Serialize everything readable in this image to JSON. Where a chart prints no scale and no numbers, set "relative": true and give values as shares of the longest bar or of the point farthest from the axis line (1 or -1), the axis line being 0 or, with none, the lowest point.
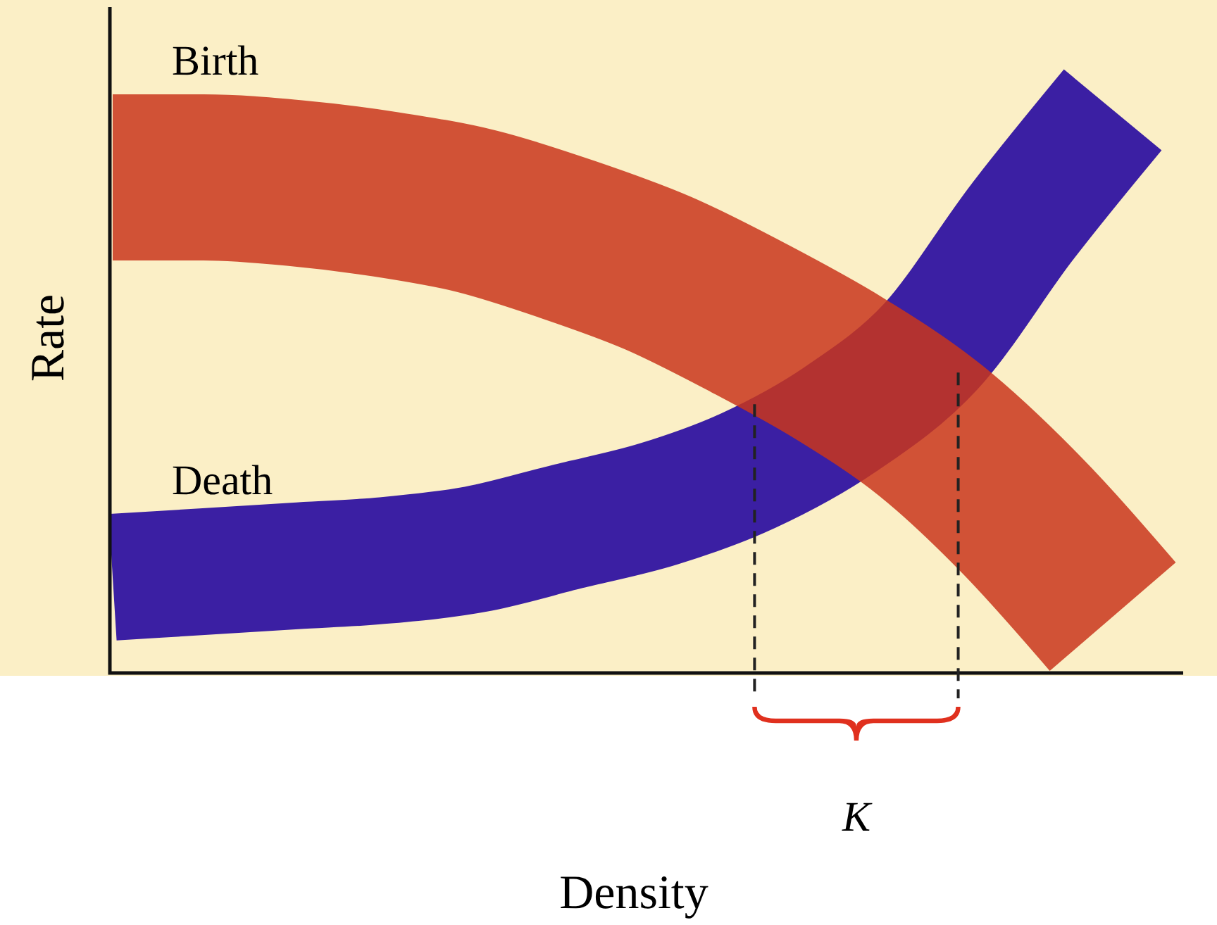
{
  "chart_data": {
    "type": "line",
    "relative": true,
    "xlabel": "Density",
    "ylabel": "Rate",
    "categories": [
      null,
      null,
      null,
      null,
      null,
      null,
      null,
      null,
      null,
      null,
      null,
      null
    ],
    "series": [
      {
        "name": "Birth",
        "color": "#c9361c",
        "values": [
          0.88,
          0.88,
          0.87,
          0.85,
          0.82,
          0.77,
          0.71,
          0.63,
          0.54,
          0.43,
          0.28,
          0.1
        ]
      },
      {
        "name": "Death",
        "color": "#3b1fa3",
        "values": [
          0.17,
          0.18,
          0.19,
          0.2,
          0.22,
          0.26,
          0.3,
          0.36,
          0.45,
          0.58,
          0.8,
          1.0
        ]
      }
    ],
    "annotations": [
      "K"
    ]
  }
}
